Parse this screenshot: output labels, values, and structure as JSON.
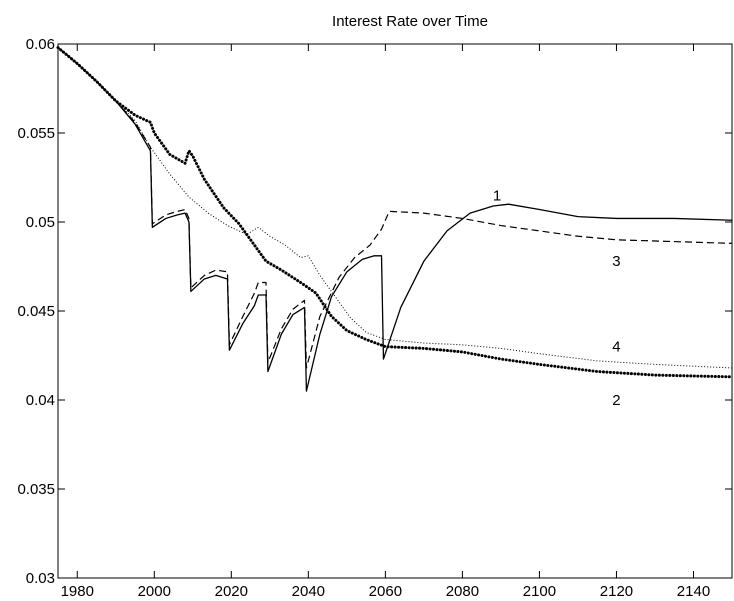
{
  "chart_data": {
    "type": "line",
    "title": "Interest Rate over Time",
    "xlabel": "",
    "ylabel": "",
    "xlim": [
      1975,
      2150
    ],
    "ylim": [
      0.03,
      0.06
    ],
    "x_ticks": [
      1980,
      2000,
      2020,
      2040,
      2060,
      2080,
      2100,
      2120,
      2140
    ],
    "y_ticks": [
      0.03,
      0.035,
      0.04,
      0.045,
      0.05,
      0.055,
      0.06
    ],
    "grid": false,
    "legend": "none",
    "series": [
      {
        "name": "1",
        "style": "solid",
        "points": [
          [
            1975,
            0.0598
          ],
          [
            1980,
            0.0589
          ],
          [
            1985,
            0.0579
          ],
          [
            1990,
            0.0568
          ],
          [
            1995,
            0.0555
          ],
          [
            1999,
            0.054
          ],
          [
            1999.5,
            0.0497
          ],
          [
            2003,
            0.0502
          ],
          [
            2006,
            0.0504
          ],
          [
            2008,
            0.0505
          ],
          [
            2009,
            0.05
          ],
          [
            2009.5,
            0.0461
          ],
          [
            2013,
            0.0468
          ],
          [
            2016,
            0.047
          ],
          [
            2019,
            0.0468
          ],
          [
            2019.5,
            0.0428
          ],
          [
            2023,
            0.0443
          ],
          [
            2026,
            0.0453
          ],
          [
            2027,
            0.0459
          ],
          [
            2029,
            0.0459
          ],
          [
            2029.5,
            0.0416
          ],
          [
            2033,
            0.0437
          ],
          [
            2036,
            0.0448
          ],
          [
            2039,
            0.0452
          ],
          [
            2039.5,
            0.0405
          ],
          [
            2043,
            0.0437
          ],
          [
            2046,
            0.0458
          ],
          [
            2050,
            0.0472
          ],
          [
            2054,
            0.0479
          ],
          [
            2057,
            0.0481
          ],
          [
            2059,
            0.0481
          ],
          [
            2059.5,
            0.0423
          ],
          [
            2064,
            0.0452
          ],
          [
            2070,
            0.0478
          ],
          [
            2076,
            0.0495
          ],
          [
            2082,
            0.0505
          ],
          [
            2088,
            0.0509
          ],
          [
            2092,
            0.051
          ],
          [
            2100,
            0.0507
          ],
          [
            2110,
            0.0503
          ],
          [
            2120,
            0.0502
          ],
          [
            2135,
            0.0502
          ],
          [
            2150,
            0.0501
          ]
        ]
      },
      {
        "name": "2",
        "style": "thick-dotted",
        "points": [
          [
            1975,
            0.0598
          ],
          [
            1980,
            0.0589
          ],
          [
            1985,
            0.0579
          ],
          [
            1990,
            0.0568
          ],
          [
            1995,
            0.056
          ],
          [
            1999,
            0.0556
          ],
          [
            2000,
            0.055
          ],
          [
            2004,
            0.0538
          ],
          [
            2008,
            0.0533
          ],
          [
            2009,
            0.054
          ],
          [
            2010,
            0.0537
          ],
          [
            2013,
            0.0524
          ],
          [
            2018,
            0.0508
          ],
          [
            2022,
            0.0499
          ],
          [
            2026,
            0.0487
          ],
          [
            2029,
            0.0478
          ],
          [
            2033,
            0.0473
          ],
          [
            2038,
            0.0466
          ],
          [
            2042,
            0.046
          ],
          [
            2046,
            0.0447
          ],
          [
            2050,
            0.0439
          ],
          [
            2055,
            0.0434
          ],
          [
            2060,
            0.043
          ],
          [
            2070,
            0.0429
          ],
          [
            2080,
            0.0427
          ],
          [
            2090,
            0.0423
          ],
          [
            2100,
            0.042
          ],
          [
            2115,
            0.0416
          ],
          [
            2130,
            0.0414
          ],
          [
            2150,
            0.0413
          ]
        ]
      },
      {
        "name": "3",
        "style": "dashed",
        "points": [
          [
            1975,
            0.0598
          ],
          [
            1980,
            0.0589
          ],
          [
            1985,
            0.0579
          ],
          [
            1990,
            0.0568
          ],
          [
            1995,
            0.0556
          ],
          [
            1999,
            0.0542
          ],
          [
            1999.5,
            0.0499
          ],
          [
            2003,
            0.0504
          ],
          [
            2006,
            0.0506
          ],
          [
            2008,
            0.0507
          ],
          [
            2009,
            0.0502
          ],
          [
            2009.5,
            0.0463
          ],
          [
            2013,
            0.047
          ],
          [
            2016,
            0.0473
          ],
          [
            2019,
            0.0472
          ],
          [
            2019.5,
            0.0431
          ],
          [
            2023,
            0.0447
          ],
          [
            2026,
            0.046
          ],
          [
            2027,
            0.0466
          ],
          [
            2029,
            0.0466
          ],
          [
            2029.5,
            0.0421
          ],
          [
            2033,
            0.044
          ],
          [
            2036,
            0.0451
          ],
          [
            2039,
            0.0456
          ],
          [
            2039.5,
            0.0418
          ],
          [
            2043,
            0.0447
          ],
          [
            2048,
            0.0469
          ],
          [
            2052,
            0.048
          ],
          [
            2056,
            0.0487
          ],
          [
            2059,
            0.0496
          ],
          [
            2061,
            0.0506
          ],
          [
            2070,
            0.0505
          ],
          [
            2080,
            0.0502
          ],
          [
            2090,
            0.0498
          ],
          [
            2100,
            0.0495
          ],
          [
            2110,
            0.0492
          ],
          [
            2120,
            0.049
          ],
          [
            2135,
            0.0489
          ],
          [
            2150,
            0.0488
          ]
        ]
      },
      {
        "name": "4",
        "style": "fine-dotted",
        "points": [
          [
            1975,
            0.0598
          ],
          [
            1980,
            0.0589
          ],
          [
            1985,
            0.0579
          ],
          [
            1990,
            0.0568
          ],
          [
            1995,
            0.0557
          ],
          [
            1999,
            0.0542
          ],
          [
            2004,
            0.0527
          ],
          [
            2009,
            0.0514
          ],
          [
            2014,
            0.0505
          ],
          [
            2019,
            0.0498
          ],
          [
            2024,
            0.0493
          ],
          [
            2027,
            0.0497
          ],
          [
            2030,
            0.0492
          ],
          [
            2034,
            0.0487
          ],
          [
            2038,
            0.048
          ],
          [
            2040,
            0.0481
          ],
          [
            2043,
            0.047
          ],
          [
            2047,
            0.0458
          ],
          [
            2051,
            0.0446
          ],
          [
            2055,
            0.0438
          ],
          [
            2060,
            0.0434
          ],
          [
            2070,
            0.0432
          ],
          [
            2080,
            0.0431
          ],
          [
            2090,
            0.0429
          ],
          [
            2100,
            0.0426
          ],
          [
            2115,
            0.0422
          ],
          [
            2130,
            0.042
          ],
          [
            2150,
            0.0418
          ]
        ]
      }
    ],
    "annotations": [
      {
        "text": "1",
        "x": 2089,
        "y": 0.0515
      },
      {
        "text": "3",
        "x": 2120,
        "y": 0.0478
      },
      {
        "text": "4",
        "x": 2120,
        "y": 0.043
      },
      {
        "text": "2",
        "x": 2120,
        "y": 0.04
      }
    ]
  }
}
